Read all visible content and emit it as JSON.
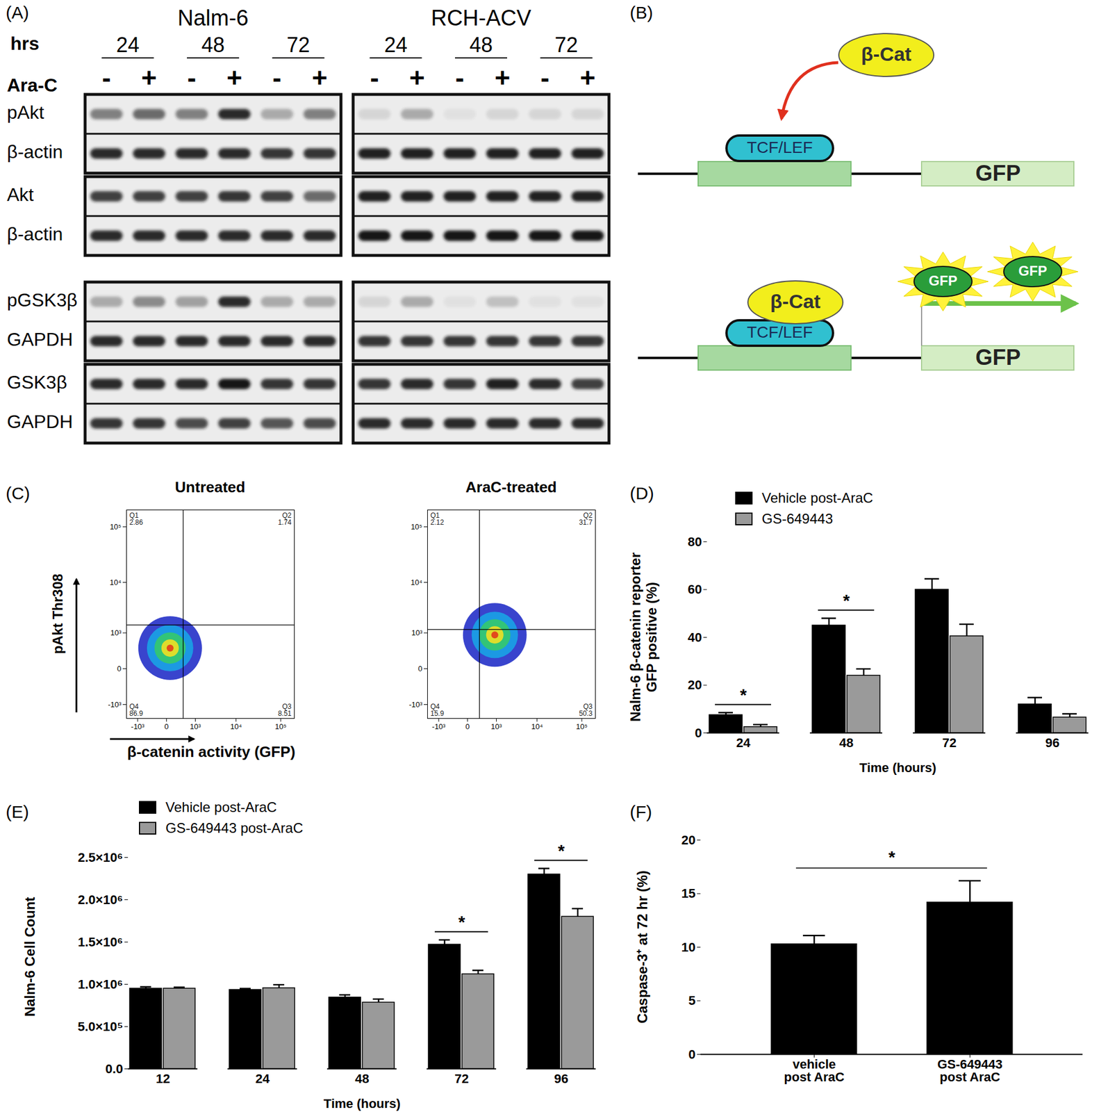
{
  "blots": {
    "panel_label": "(A)",
    "time_label": "hrs",
    "drug_label": "Ara-C",
    "times": [
      24,
      48,
      72
    ],
    "treatment": [
      "-",
      "+"
    ],
    "cell_lines": [
      "Nalm-6",
      "RCH-ACV"
    ],
    "sections": [
      {
        "boxes": [
          {
            "rows": [
              {
                "protein": "pAkt",
                "intensity": [
                  [
                    0.5,
                    0.6,
                    0.5,
                    0.9,
                    0.3,
                    0.5
                  ],
                  [
                    0.1,
                    0.3,
                    0.05,
                    0.1,
                    0.1,
                    0.1
                  ]
                ]
              },
              {
                "protein": "β-actin",
                "intensity": [
                  [
                    0.9,
                    0.9,
                    0.9,
                    0.9,
                    0.85,
                    0.85
                  ],
                  [
                    0.95,
                    0.95,
                    0.95,
                    0.95,
                    0.95,
                    0.95
                  ]
                ]
              }
            ]
          },
          {
            "rows": [
              {
                "protein": "Akt",
                "intensity": [
                  [
                    0.8,
                    0.8,
                    0.8,
                    0.85,
                    0.8,
                    0.6
                  ],
                  [
                    0.95,
                    0.95,
                    0.95,
                    0.95,
                    0.95,
                    0.95
                  ]
                ]
              },
              {
                "protein": "β-actin",
                "intensity": [
                  [
                    0.9,
                    0.9,
                    0.9,
                    0.9,
                    0.9,
                    0.9
                  ],
                  [
                    1,
                    1,
                    1,
                    1,
                    1,
                    1
                  ]
                ]
              }
            ]
          }
        ]
      },
      {
        "boxes": [
          {
            "rows": [
              {
                "protein": "pGSK3β",
                "intensity": [
                  [
                    0.3,
                    0.45,
                    0.35,
                    0.9,
                    0.3,
                    0.3
                  ],
                  [
                    0.1,
                    0.3,
                    0.05,
                    0.2,
                    0.05,
                    0.05
                  ]
                ]
              },
              {
                "protein": "GAPDH",
                "intensity": [
                  [
                    0.9,
                    0.9,
                    0.9,
                    0.9,
                    0.9,
                    0.9
                  ],
                  [
                    0.85,
                    0.85,
                    0.85,
                    0.85,
                    0.85,
                    0.85
                  ]
                ]
              }
            ]
          },
          {
            "rows": [
              {
                "protein": "GSK3β",
                "intensity": [
                  [
                    0.9,
                    0.9,
                    0.9,
                    1,
                    0.85,
                    0.85
                  ],
                  [
                    0.85,
                    0.9,
                    0.85,
                    0.95,
                    0.9,
                    0.8
                  ]
                ]
              },
              {
                "protein": "GAPDH",
                "intensity": [
                  [
                    0.85,
                    0.85,
                    0.75,
                    0.8,
                    0.7,
                    0.75
                  ],
                  [
                    0.9,
                    0.9,
                    0.9,
                    0.9,
                    0.9,
                    0.9
                  ]
                ]
              }
            ]
          }
        ]
      }
    ]
  },
  "diagram": {
    "panel_label": "(B)",
    "inactive": {
      "activator": "β-Cat",
      "factor": "TCF/LEF",
      "reporter": "GFP"
    },
    "active": {
      "activator": "β-Cat",
      "factor": "TCF/LEF",
      "reporter": "GFP",
      "products": [
        "GFP",
        "GFP"
      ]
    }
  },
  "chart_data": [
    {
      "type": "scatter",
      "panel_label": "(C)",
      "x_label": "β-catenin activity (GFP)",
      "y_label": "pAkt Thr308",
      "log": true,
      "xlim": [
        -2000,
        200000
      ],
      "ylim": [
        -2000,
        200000
      ],
      "xticks": [
        {
          "value": -1000,
          "label": "-10³"
        },
        0,
        {
          "value": 1000,
          "label": "10³"
        },
        {
          "value": 10000,
          "label": "10⁴"
        },
        {
          "value": 100000,
          "label": "10⁵"
        }
      ],
      "yticks": [
        {
          "value": -1000,
          "label": "-10³"
        },
        0,
        {
          "value": 1000,
          "label": "10³"
        },
        {
          "value": 10000,
          "label": "10⁴"
        },
        {
          "value": 100000,
          "label": "10⁵"
        }
      ],
      "plots": [
        {
          "title": "Untreated",
          "gate": {
            "x": 400,
            "y": 1500
          },
          "population_center": {
            "x": 60,
            "y": 400
          },
          "quadrants": [
            {
              "label": "Q1",
              "value": 2.86
            },
            {
              "label": "Q2",
              "value": 1.74
            },
            {
              "label": "Q3",
              "value": 8.51
            },
            {
              "label": "Q4",
              "value": 86.9
            }
          ]
        },
        {
          "title": "AraC-treated",
          "gate": {
            "x": 250,
            "y": 1200
          },
          "population_center": {
            "x": 900,
            "y": 900
          },
          "quadrants": [
            {
              "label": "Q1",
              "value": 2.12
            },
            {
              "label": "Q2",
              "value": 31.7
            },
            {
              "label": "Q3",
              "value": 50.3
            },
            {
              "label": "Q4",
              "value": 15.9
            }
          ]
        }
      ]
    },
    {
      "type": "bar",
      "panel_label": "(D)",
      "x_label": "Time (hours)",
      "y_label": "Nalm-6 β-catenin reporter\nGFP positive (%)",
      "categories": [
        "24",
        "48",
        "72",
        "96"
      ],
      "series": [
        {
          "name": "Vehicle post-AraC",
          "color": "#000000",
          "values": [
            7.5,
            45,
            60,
            12
          ],
          "errors": [
            1,
            3,
            4.5,
            2.8
          ]
        },
        {
          "name": "GS-649443",
          "color": "#9a9a9a",
          "values": [
            2.5,
            24,
            40.5,
            6.5
          ],
          "errors": [
            1,
            2.8,
            5,
            1.5
          ]
        }
      ],
      "ylim": [
        0,
        80
      ],
      "yticks": [
        0,
        20,
        40,
        60,
        80
      ],
      "significance": [
        true,
        true,
        false,
        false
      ],
      "annotation": "*",
      "legend": "top-left"
    },
    {
      "type": "bar",
      "panel_label": "(E)",
      "x_label": "Time (hours)",
      "y_label": "Nalm-6 Cell Count",
      "categories": [
        "12",
        "24",
        "48",
        "72",
        "96"
      ],
      "series": [
        {
          "name": "Vehicle post-AraC",
          "color": "#000000",
          "values": [
            950000,
            935000,
            845000,
            1470000,
            2300000
          ],
          "errors": [
            20000,
            15000,
            30000,
            55000,
            70000
          ]
        },
        {
          "name": "GS-649443 post-AraC",
          "color": "#9a9a9a",
          "values": [
            950000,
            955000,
            785000,
            1120000,
            1800000
          ],
          "errors": [
            15000,
            40000,
            40000,
            45000,
            95000
          ]
        }
      ],
      "ylim": [
        0,
        2500000
      ],
      "yticks": [
        {
          "value": 0,
          "label": "0.0"
        },
        {
          "value": 500000,
          "label": "5.0×10⁵"
        },
        {
          "value": 1000000,
          "label": "1.0×10⁶"
        },
        {
          "value": 1500000,
          "label": "1.5×10⁶"
        },
        {
          "value": 2000000,
          "label": "2.0×10⁶"
        },
        {
          "value": 2500000,
          "label": "2.5×10⁶"
        }
      ],
      "significance": [
        false,
        false,
        false,
        true,
        true
      ],
      "annotation": "*",
      "legend": "top-left"
    },
    {
      "type": "bar",
      "panel_label": "(F)",
      "y_label": "Caspase-3⁺ at 72 hr (%)",
      "categories": [
        "vehicle\npost AraC",
        "GS-649443\npost AraC"
      ],
      "values": [
        10.3,
        14.2
      ],
      "errors": [
        0.8,
        2.0
      ],
      "color": "#000000",
      "ylim": [
        0,
        20
      ],
      "yticks": [
        0,
        5,
        10,
        15,
        20
      ],
      "annotation": "*"
    }
  ]
}
